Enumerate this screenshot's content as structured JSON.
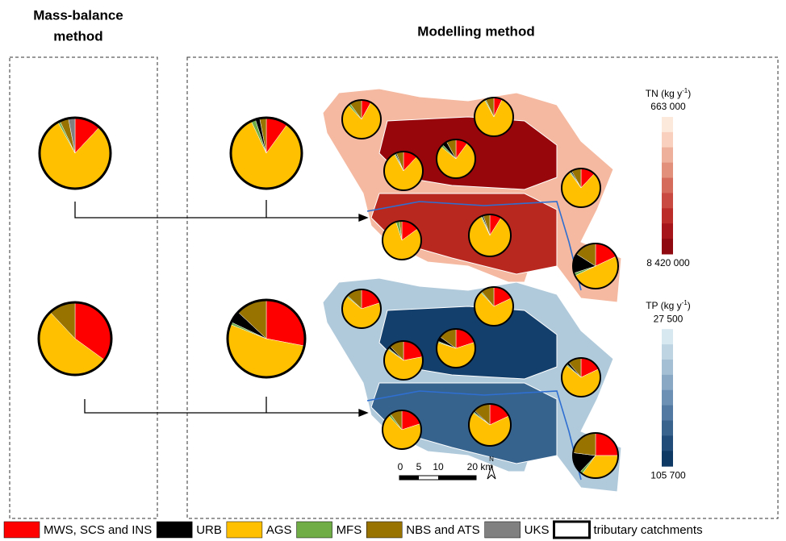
{
  "headers": {
    "left": [
      "Mass-balance",
      "method"
    ],
    "right": "Modelling method"
  },
  "legend": [
    {
      "label": "MWS, SCS and INS",
      "color": "#ff0000"
    },
    {
      "label": "URB",
      "color": "#000000"
    },
    {
      "label": "AGS",
      "color": "#ffc000"
    },
    {
      "label": "MFS",
      "color": "#70ad47"
    },
    {
      "label": "NBS and ATS",
      "color": "#997300"
    },
    {
      "label": "UKS",
      "color": "#808080"
    },
    {
      "label": "tributary catchments",
      "color": "#ffffff"
    }
  ],
  "tn": {
    "title": "TN (kg y",
    "sup": "-1",
    "close": ")",
    "min": "663 000",
    "max": "8 420 000",
    "mass_pie": [
      12,
      0,
      80,
      1,
      4,
      3
    ],
    "model_pie": [
      10,
      2,
      83,
      2,
      3,
      0
    ],
    "map_pies": [
      [
        8,
        0,
        80,
        2,
        10,
        0
      ],
      [
        7,
        0,
        85,
        1,
        7,
        0
      ],
      [
        12,
        1,
        80,
        1,
        6,
        0
      ],
      [
        10,
        4,
        76,
        2,
        8,
        0
      ],
      [
        12,
        1,
        78,
        1,
        8,
        0
      ],
      [
        15,
        0,
        80,
        3,
        2,
        0
      ],
      [
        9,
        1,
        84,
        1,
        5,
        0
      ],
      [
        18,
        14,
        50,
        2,
        16,
        0
      ]
    ]
  },
  "tp": {
    "title": "TP (kg y",
    "sup": "-1",
    "close": ")",
    "min": "27 500",
    "max": "105 700",
    "mass_pie": [
      35,
      0,
      53,
      0,
      12,
      0
    ],
    "model_pie": [
      28,
      5,
      53,
      1,
      13,
      0
    ],
    "map_pies": [
      [
        20,
        0,
        66,
        1,
        13,
        0
      ],
      [
        18,
        0,
        70,
        1,
        11,
        0
      ],
      [
        22,
        2,
        63,
        1,
        12,
        0
      ],
      [
        20,
        4,
        60,
        1,
        15,
        0
      ],
      [
        18,
        2,
        68,
        1,
        11,
        0
      ],
      [
        20,
        0,
        68,
        2,
        10,
        0
      ],
      [
        18,
        1,
        67,
        1,
        13,
        0
      ],
      [
        25,
        15,
        35,
        2,
        23,
        0
      ]
    ]
  },
  "scalebar": [
    "0",
    "5",
    "10",
    "20 km"
  ],
  "north": "N"
}
